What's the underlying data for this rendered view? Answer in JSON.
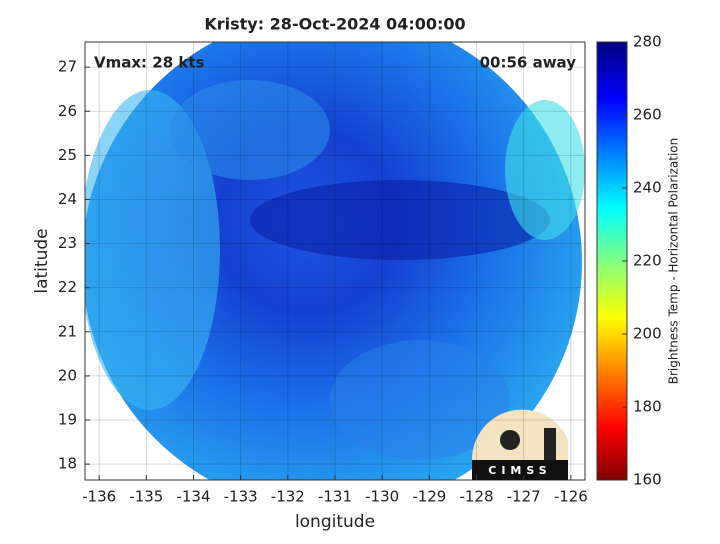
{
  "chart_data": {
    "type": "image",
    "title": "Kristy: 28-Oct-2024 04:00:00",
    "xlabel": "longitude",
    "ylabel": "latitude",
    "annotations": [
      "Vmax: 28 kts",
      "00:56 away"
    ],
    "logo": "CIMSS",
    "xlim": [
      -136.3,
      -125.7
    ],
    "xticks": [
      -136,
      -135,
      -134,
      -133,
      -132,
      -131,
      -130,
      -129,
      -128,
      -127,
      -126
    ],
    "ylim": [
      17.64,
      27.57
    ],
    "yticks": [
      18,
      19,
      20,
      21,
      22,
      23,
      24,
      25,
      26,
      27
    ],
    "grid": true,
    "colorbar": {
      "label": "Brightness Temp - Horizontal Polarization",
      "lim": [
        160,
        280
      ],
      "ticks": [
        160,
        180,
        200,
        220,
        240,
        260,
        280
      ]
    }
  }
}
